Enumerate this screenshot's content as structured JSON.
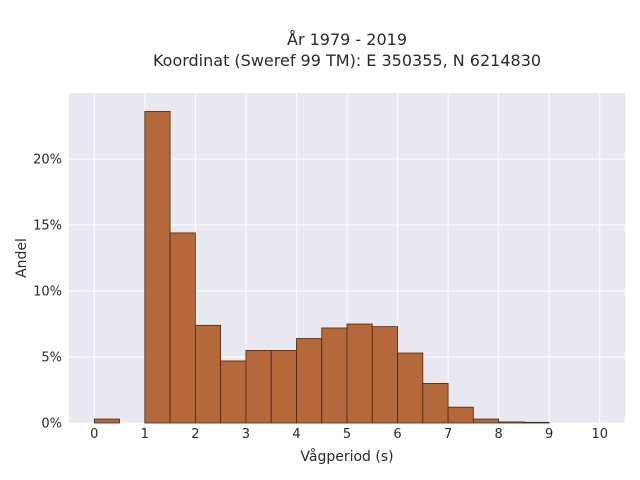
{
  "chart_data": {
    "type": "bar",
    "title": "År 1979 - 2019",
    "subtitle": "Koordinat (Sweref 99 TM): E 350355, N 6214830",
    "xlabel": "Vågperiod (s)",
    "ylabel": "Andel",
    "xlim": [
      -0.5,
      10.5
    ],
    "ylim": [
      0,
      0.25
    ],
    "x_ticks": [
      0,
      1,
      2,
      3,
      4,
      5,
      6,
      7,
      8,
      9,
      10
    ],
    "y_ticks": [
      0,
      0.05,
      0.1,
      0.15,
      0.2
    ],
    "y_tick_labels": [
      "0%",
      "5%",
      "10%",
      "15%",
      "20%"
    ],
    "grid": true,
    "bin_width": 0.5,
    "bins": [
      {
        "x0": 0.0,
        "x1": 0.5,
        "value": 0.003
      },
      {
        "x0": 1.0,
        "x1": 1.5,
        "value": 0.236
      },
      {
        "x0": 1.5,
        "x1": 2.0,
        "value": 0.144
      },
      {
        "x0": 2.0,
        "x1": 2.5,
        "value": 0.074
      },
      {
        "x0": 2.5,
        "x1": 3.0,
        "value": 0.047
      },
      {
        "x0": 3.0,
        "x1": 3.5,
        "value": 0.055
      },
      {
        "x0": 3.5,
        "x1": 4.0,
        "value": 0.055
      },
      {
        "x0": 4.0,
        "x1": 4.5,
        "value": 0.064
      },
      {
        "x0": 4.5,
        "x1": 5.0,
        "value": 0.072
      },
      {
        "x0": 5.0,
        "x1": 5.5,
        "value": 0.075
      },
      {
        "x0": 5.5,
        "x1": 6.0,
        "value": 0.073
      },
      {
        "x0": 6.0,
        "x1": 6.5,
        "value": 0.053
      },
      {
        "x0": 6.5,
        "x1": 7.0,
        "value": 0.03
      },
      {
        "x0": 7.0,
        "x1": 7.5,
        "value": 0.012
      },
      {
        "x0": 7.5,
        "x1": 8.0,
        "value": 0.003
      },
      {
        "x0": 8.0,
        "x1": 8.5,
        "value": 0.0008
      },
      {
        "x0": 8.5,
        "x1": 9.0,
        "value": 0.0005
      }
    ],
    "colors": {
      "bar_fill": "#b5693b",
      "bar_stroke": "#3d2a1f",
      "plot_bg": "#e8e8f0",
      "grid": "#ffffff"
    }
  }
}
